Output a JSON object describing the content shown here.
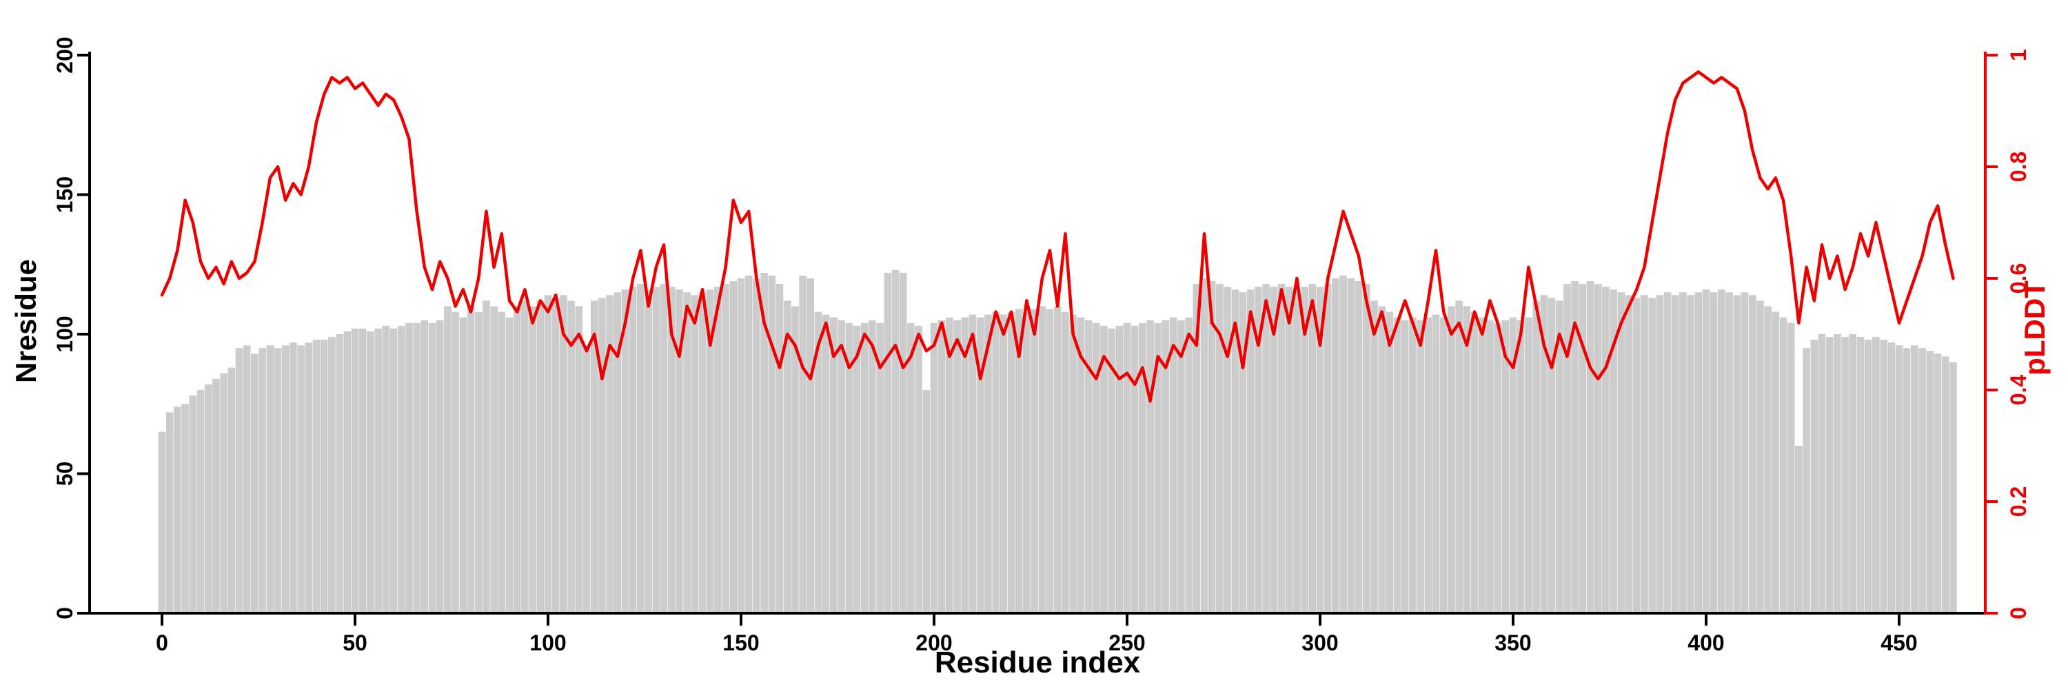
{
  "chart_data": {
    "type": "bar+line",
    "title": "",
    "xlabel": "Residue index",
    "ylabel_left": "Nresidue",
    "ylabel_right": "pLDDT",
    "x_ticks": [
      0,
      50,
      100,
      150,
      200,
      250,
      300,
      350,
      400,
      450
    ],
    "y_left_ticks": [
      0,
      50,
      100,
      150,
      200
    ],
    "y_right_ticks": [
      0,
      0.2,
      0.4,
      0.6,
      0.8,
      1
    ],
    "xlim": [
      -20,
      480
    ],
    "ylim_left": [
      0,
      200
    ],
    "ylim_right": [
      0,
      1
    ],
    "grid": false,
    "legend": "none",
    "colors": {
      "bar": "#cccccc",
      "line": "#ee0000",
      "axis": "#000000",
      "background": "#ffffff"
    },
    "x": [
      0,
      2,
      4,
      6,
      8,
      10,
      12,
      14,
      16,
      18,
      20,
      22,
      24,
      26,
      28,
      30,
      32,
      34,
      36,
      38,
      40,
      42,
      44,
      46,
      48,
      50,
      52,
      54,
      56,
      58,
      60,
      62,
      64,
      66,
      68,
      70,
      72,
      74,
      76,
      78,
      80,
      82,
      84,
      86,
      88,
      90,
      92,
      94,
      96,
      98,
      100,
      102,
      104,
      106,
      108,
      110,
      112,
      114,
      116,
      118,
      120,
      122,
      124,
      126,
      128,
      130,
      132,
      134,
      136,
      138,
      140,
      142,
      144,
      146,
      148,
      150,
      152,
      154,
      156,
      158,
      160,
      162,
      164,
      166,
      168,
      170,
      172,
      174,
      176,
      178,
      180,
      182,
      184,
      186,
      188,
      190,
      192,
      194,
      196,
      198,
      200,
      202,
      204,
      206,
      208,
      210,
      212,
      214,
      216,
      218,
      220,
      222,
      224,
      226,
      228,
      230,
      232,
      234,
      236,
      238,
      240,
      242,
      244,
      246,
      248,
      250,
      252,
      254,
      256,
      258,
      260,
      262,
      264,
      266,
      268,
      270,
      272,
      274,
      276,
      278,
      280,
      282,
      284,
      286,
      288,
      290,
      292,
      294,
      296,
      298,
      300,
      302,
      304,
      306,
      308,
      310,
      312,
      314,
      316,
      318,
      320,
      322,
      324,
      326,
      328,
      330,
      332,
      334,
      336,
      338,
      340,
      342,
      344,
      346,
      348,
      350,
      352,
      354,
      356,
      358,
      360,
      362,
      364,
      366,
      368,
      370,
      372,
      374,
      376,
      378,
      380,
      382,
      384,
      386,
      388,
      390,
      392,
      394,
      396,
      398,
      400,
      402,
      404,
      406,
      408,
      410,
      412,
      414,
      416,
      418,
      420,
      422,
      424,
      426,
      428,
      430,
      432,
      434,
      436,
      438,
      440,
      442,
      444,
      446,
      448,
      450,
      452,
      454,
      456,
      458,
      460,
      462,
      464
    ],
    "series": [
      {
        "name": "Nresidue",
        "axis": "left",
        "type": "bar",
        "values": [
          65,
          72,
          74,
          75,
          78,
          80,
          82,
          84,
          86,
          88,
          95,
          96,
          93,
          95,
          96,
          95,
          96,
          97,
          96,
          97,
          98,
          98,
          99,
          100,
          101,
          102,
          102,
          101,
          102,
          103,
          102,
          103,
          104,
          104,
          105,
          104,
          105,
          110,
          108,
          106,
          110,
          108,
          112,
          110,
          108,
          106,
          110,
          112,
          110,
          112,
          114,
          113,
          114,
          112,
          110,
          96,
          112,
          113,
          114,
          115,
          116,
          117,
          118,
          116,
          117,
          118,
          117,
          116,
          115,
          114,
          115,
          116,
          117,
          118,
          119,
          120,
          121,
          120,
          122,
          121,
          118,
          112,
          110,
          121,
          120,
          108,
          107,
          106,
          105,
          104,
          103,
          104,
          105,
          104,
          122,
          123,
          122,
          104,
          103,
          80,
          104,
          105,
          106,
          105,
          106,
          107,
          106,
          107,
          108,
          107,
          108,
          109,
          108,
          109,
          110,
          109,
          110,
          108,
          107,
          106,
          105,
          104,
          103,
          102,
          103,
          104,
          103,
          104,
          105,
          104,
          105,
          106,
          105,
          106,
          118,
          120,
          119,
          118,
          117,
          116,
          115,
          116,
          117,
          118,
          117,
          118,
          117,
          116,
          117,
          118,
          117,
          118,
          120,
          121,
          120,
          119,
          118,
          112,
          110,
          108,
          106,
          105,
          106,
          105,
          106,
          107,
          106,
          110,
          112,
          110,
          108,
          106,
          105,
          104,
          105,
          106,
          105,
          106,
          112,
          114,
          113,
          112,
          118,
          119,
          118,
          119,
          118,
          117,
          116,
          115,
          114,
          113,
          114,
          113,
          114,
          115,
          114,
          115,
          114,
          115,
          116,
          115,
          116,
          115,
          114,
          115,
          114,
          112,
          110,
          108,
          106,
          104,
          60,
          95,
          98,
          100,
          99,
          100,
          99,
          100,
          99,
          98,
          99,
          98,
          97,
          96,
          95,
          96,
          95,
          94,
          93,
          92,
          90
        ]
      },
      {
        "name": "pLDDT",
        "axis": "right",
        "type": "line",
        "values": [
          0.57,
          0.6,
          0.65,
          0.74,
          0.7,
          0.63,
          0.6,
          0.62,
          0.59,
          0.63,
          0.6,
          0.61,
          0.63,
          0.7,
          0.78,
          0.8,
          0.74,
          0.77,
          0.75,
          0.8,
          0.88,
          0.93,
          0.96,
          0.95,
          0.96,
          0.94,
          0.95,
          0.93,
          0.91,
          0.93,
          0.92,
          0.89,
          0.85,
          0.72,
          0.62,
          0.58,
          0.63,
          0.6,
          0.55,
          0.58,
          0.54,
          0.6,
          0.72,
          0.62,
          0.68,
          0.56,
          0.54,
          0.58,
          0.52,
          0.56,
          0.54,
          0.57,
          0.5,
          0.48,
          0.5,
          0.47,
          0.5,
          0.42,
          0.48,
          0.46,
          0.52,
          0.6,
          0.65,
          0.55,
          0.62,
          0.66,
          0.5,
          0.46,
          0.55,
          0.52,
          0.58,
          0.48,
          0.55,
          0.62,
          0.74,
          0.7,
          0.72,
          0.6,
          0.52,
          0.48,
          0.44,
          0.5,
          0.48,
          0.44,
          0.42,
          0.48,
          0.52,
          0.46,
          0.48,
          0.44,
          0.46,
          0.5,
          0.48,
          0.44,
          0.46,
          0.48,
          0.44,
          0.46,
          0.5,
          0.47,
          0.48,
          0.52,
          0.46,
          0.49,
          0.46,
          0.5,
          0.42,
          0.48,
          0.54,
          0.5,
          0.54,
          0.46,
          0.56,
          0.5,
          0.6,
          0.65,
          0.55,
          0.68,
          0.5,
          0.46,
          0.44,
          0.42,
          0.46,
          0.44,
          0.42,
          0.43,
          0.41,
          0.44,
          0.38,
          0.46,
          0.44,
          0.48,
          0.46,
          0.5,
          0.48,
          0.68,
          0.52,
          0.5,
          0.46,
          0.52,
          0.44,
          0.54,
          0.48,
          0.56,
          0.5,
          0.58,
          0.52,
          0.6,
          0.5,
          0.56,
          0.48,
          0.6,
          0.66,
          0.72,
          0.68,
          0.64,
          0.56,
          0.5,
          0.54,
          0.48,
          0.52,
          0.56,
          0.52,
          0.48,
          0.56,
          0.65,
          0.54,
          0.5,
          0.52,
          0.48,
          0.54,
          0.5,
          0.56,
          0.52,
          0.46,
          0.44,
          0.5,
          0.62,
          0.55,
          0.48,
          0.44,
          0.5,
          0.46,
          0.52,
          0.48,
          0.44,
          0.42,
          0.44,
          0.48,
          0.52,
          0.55,
          0.58,
          0.62,
          0.7,
          0.78,
          0.86,
          0.92,
          0.95,
          0.96,
          0.97,
          0.96,
          0.95,
          0.96,
          0.95,
          0.94,
          0.9,
          0.83,
          0.78,
          0.76,
          0.78,
          0.74,
          0.64,
          0.52,
          0.62,
          0.56,
          0.66,
          0.6,
          0.64,
          0.58,
          0.62,
          0.68,
          0.64,
          0.7,
          0.64,
          0.58,
          0.52,
          0.56,
          0.6,
          0.64,
          0.7,
          0.73,
          0.66,
          0.6
        ]
      }
    ]
  }
}
